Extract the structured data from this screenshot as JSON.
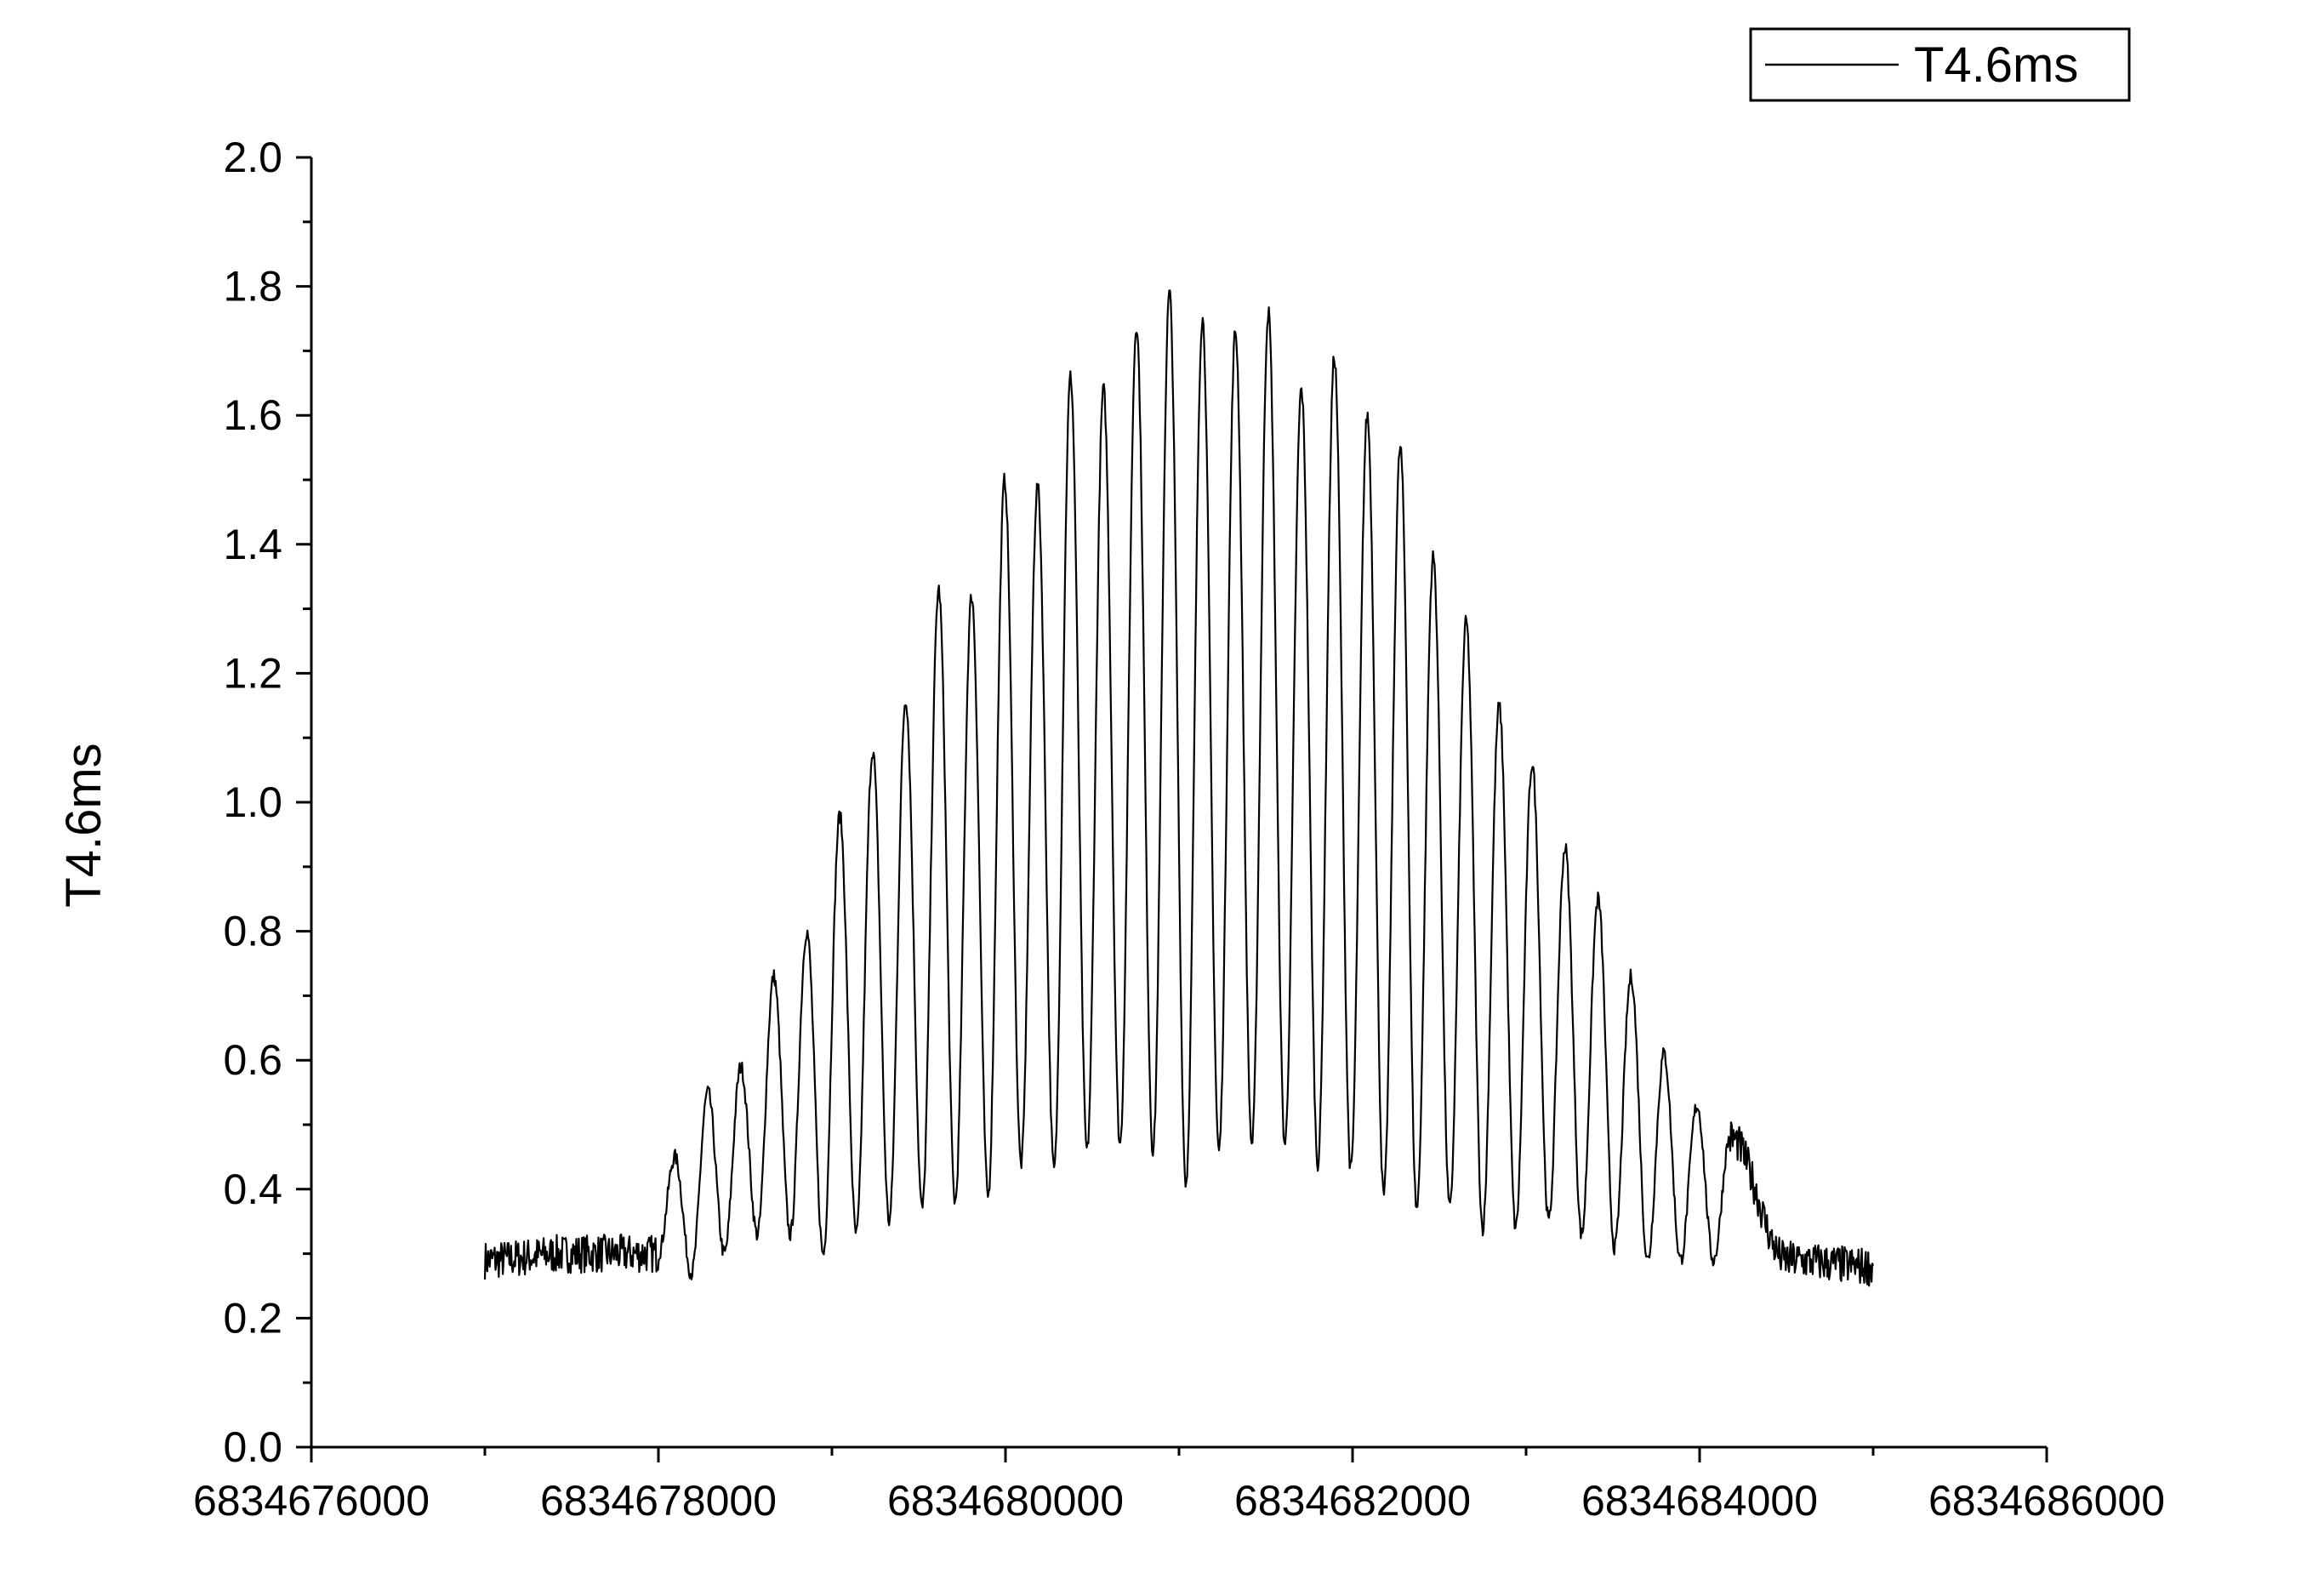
{
  "chart_data": {
    "type": "line",
    "title": "",
    "xlabel": "",
    "ylabel": "T4.6ms",
    "xlim": [
      6834676000,
      6834686000
    ],
    "ylim": [
      0.0,
      2.0
    ],
    "x_ticks": [
      6834676000,
      6834678000,
      6834680000,
      6834682000,
      6834684000,
      6834686000
    ],
    "x_tick_labels": [
      "6834676000",
      "6834678000",
      "6834680000",
      "6834682000",
      "6834684000",
      "6834686000"
    ],
    "y_ticks": [
      0.0,
      0.2,
      0.4,
      0.6,
      0.8,
      1.0,
      1.2,
      1.4,
      1.6,
      1.8,
      2.0
    ],
    "y_tick_labels": [
      "0.0",
      "0.2",
      "0.4",
      "0.6",
      "0.8",
      "1.0",
      "1.2",
      "1.4",
      "1.6",
      "1.8",
      "2.0"
    ],
    "grid": false,
    "legend": {
      "position": "top-right",
      "entries": [
        "T4.6ms"
      ]
    },
    "series": [
      {
        "name": "T4.6ms",
        "color": "#000000",
        "x_range": [
          6834677000,
          6834685000
        ],
        "x": [
          6834677000,
          6834677500,
          6834678000,
          6834678095,
          6834678190,
          6834678285,
          6834678380,
          6834678475,
          6834678570,
          6834678665,
          6834678760,
          6834678855,
          6834678950,
          6834679045,
          6834679140,
          6834679235,
          6834679330,
          6834679425,
          6834679520,
          6834679615,
          6834679710,
          6834679805,
          6834679900,
          6834679995,
          6834680090,
          6834680185,
          6834680280,
          6834680375,
          6834680470,
          6834680565,
          6834680660,
          6834680755,
          6834680850,
          6834680945,
          6834681040,
          6834681135,
          6834681230,
          6834681325,
          6834681420,
          6834681515,
          6834681610,
          6834681705,
          6834681800,
          6834681895,
          6834681990,
          6834682085,
          6834682180,
          6834682275,
          6834682370,
          6834682465,
          6834682560,
          6834682655,
          6834682750,
          6834682845,
          6834682940,
          6834683035,
          6834683130,
          6834683225,
          6834683320,
          6834683415,
          6834683510,
          6834683605,
          6834683700,
          6834683795,
          6834683890,
          6834683985,
          6834684080,
          6834684175,
          6834684500,
          6834685000
        ],
        "y": [
          0.29,
          0.3,
          0.3,
          0.45,
          0.27,
          0.55,
          0.3,
          0.59,
          0.33,
          0.73,
          0.33,
          0.8,
          0.3,
          0.98,
          0.33,
          1.08,
          0.35,
          1.16,
          0.37,
          1.33,
          0.38,
          1.32,
          0.39,
          1.5,
          0.44,
          1.49,
          0.43,
          1.66,
          0.46,
          1.64,
          0.47,
          1.74,
          0.46,
          1.79,
          0.41,
          1.75,
          0.46,
          1.73,
          0.47,
          1.76,
          0.47,
          1.64,
          0.44,
          1.69,
          0.43,
          1.6,
          0.39,
          1.55,
          0.37,
          1.38,
          0.37,
          1.28,
          0.34,
          1.15,
          0.34,
          1.06,
          0.35,
          0.93,
          0.33,
          0.85,
          0.31,
          0.73,
          0.29,
          0.61,
          0.29,
          0.53,
          0.29,
          0.48,
          0.29,
          0.28
        ]
      }
    ]
  }
}
